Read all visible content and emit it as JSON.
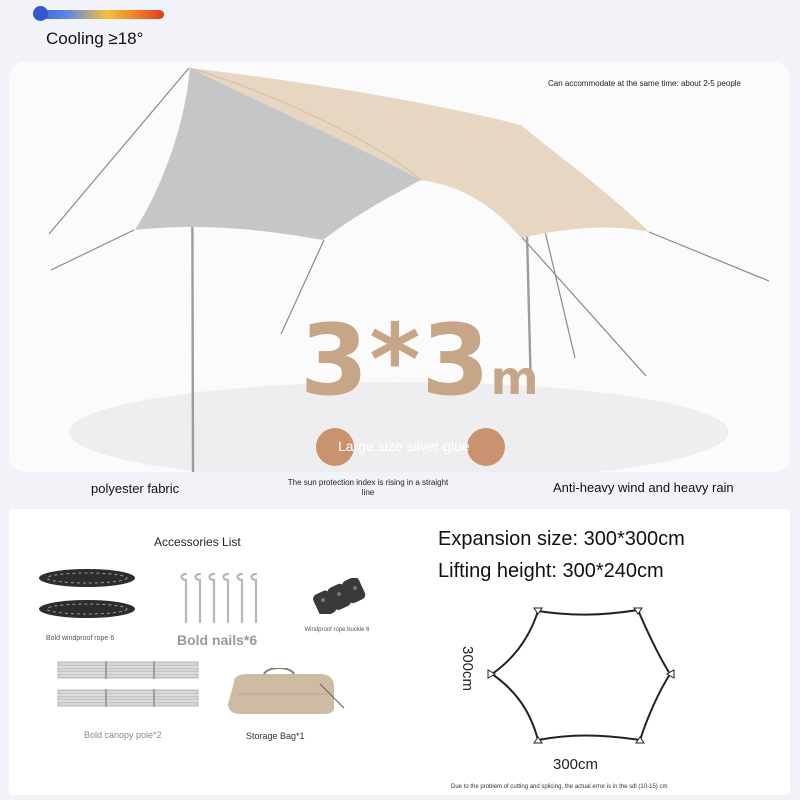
{
  "thermometer": {
    "cooling_label": "Cooling ≥18°",
    "gradient_colors": [
      "#3d63d8",
      "#f3c03a",
      "#de3b24"
    ]
  },
  "hero": {
    "capacity_note": "Can accommodate at the same time: about 2-5 people",
    "size_number": "3*3",
    "size_unit": "m",
    "coating_label": "Large size silver glue",
    "accent_color": "#c7a587",
    "canopy_colors": {
      "beige": "#e7d6c1",
      "grey": "#c5c6c8"
    }
  },
  "features": {
    "fabric": "polyester fabric",
    "sun_protection": "The sun protection index is rising in a straight line",
    "wind_rain": "Anti-heavy wind and heavy rain"
  },
  "accessories": {
    "title": "Accessories List",
    "items": [
      {
        "label": "Bold windproof rope 6",
        "icon": "rope-coil-icon"
      },
      {
        "label": "Bold nails*6",
        "icon": "tent-stake-icon"
      },
      {
        "label": "Windproof rope buckle 6",
        "icon": "rope-buckle-icon"
      },
      {
        "label": "Bold canopy pole*2",
        "icon": "canopy-pole-icon"
      },
      {
        "label": "Storage Bag*1",
        "icon": "storage-bag-icon"
      }
    ]
  },
  "specs": {
    "expansion": "Expansion size: 300*300cm",
    "lifting": "Lifting height: 300*240cm",
    "dim_height": "300cm",
    "dim_width": "300cm",
    "footnote": "Due to the problem of cutting and splicing, the actual error is in the sdl (10-15) cm"
  }
}
